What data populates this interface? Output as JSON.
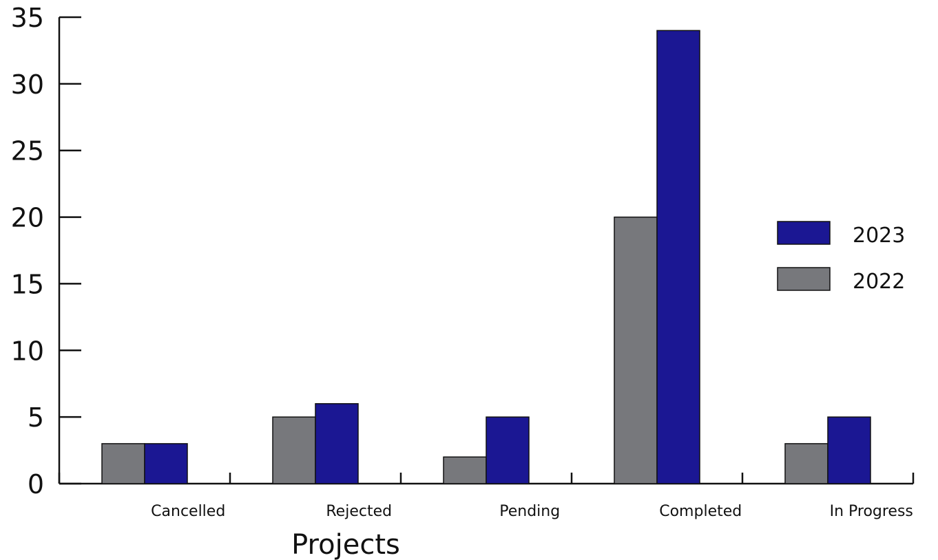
{
  "chart_data": {
    "type": "bar",
    "title": "",
    "xlabel": "Projects",
    "ylabel": "",
    "ylim": [
      0,
      35
    ],
    "yticks": [
      0,
      5,
      10,
      15,
      20,
      25,
      30,
      35
    ],
    "categories": [
      "Cancelled",
      "Rejected",
      "Pending",
      "Completed",
      "In Progress"
    ],
    "series": [
      {
        "name": "2022",
        "color": "#77787c",
        "values": [
          3,
          5,
          2,
          20,
          3
        ]
      },
      {
        "name": "2023",
        "color": "#1b1793",
        "values": [
          3,
          6,
          5,
          34,
          5
        ]
      }
    ],
    "legend": {
      "position": "right",
      "entries": [
        {
          "label": "2023",
          "color": "#1b1793"
        },
        {
          "label": "2022",
          "color": "#77787c"
        }
      ]
    },
    "grid": false
  }
}
